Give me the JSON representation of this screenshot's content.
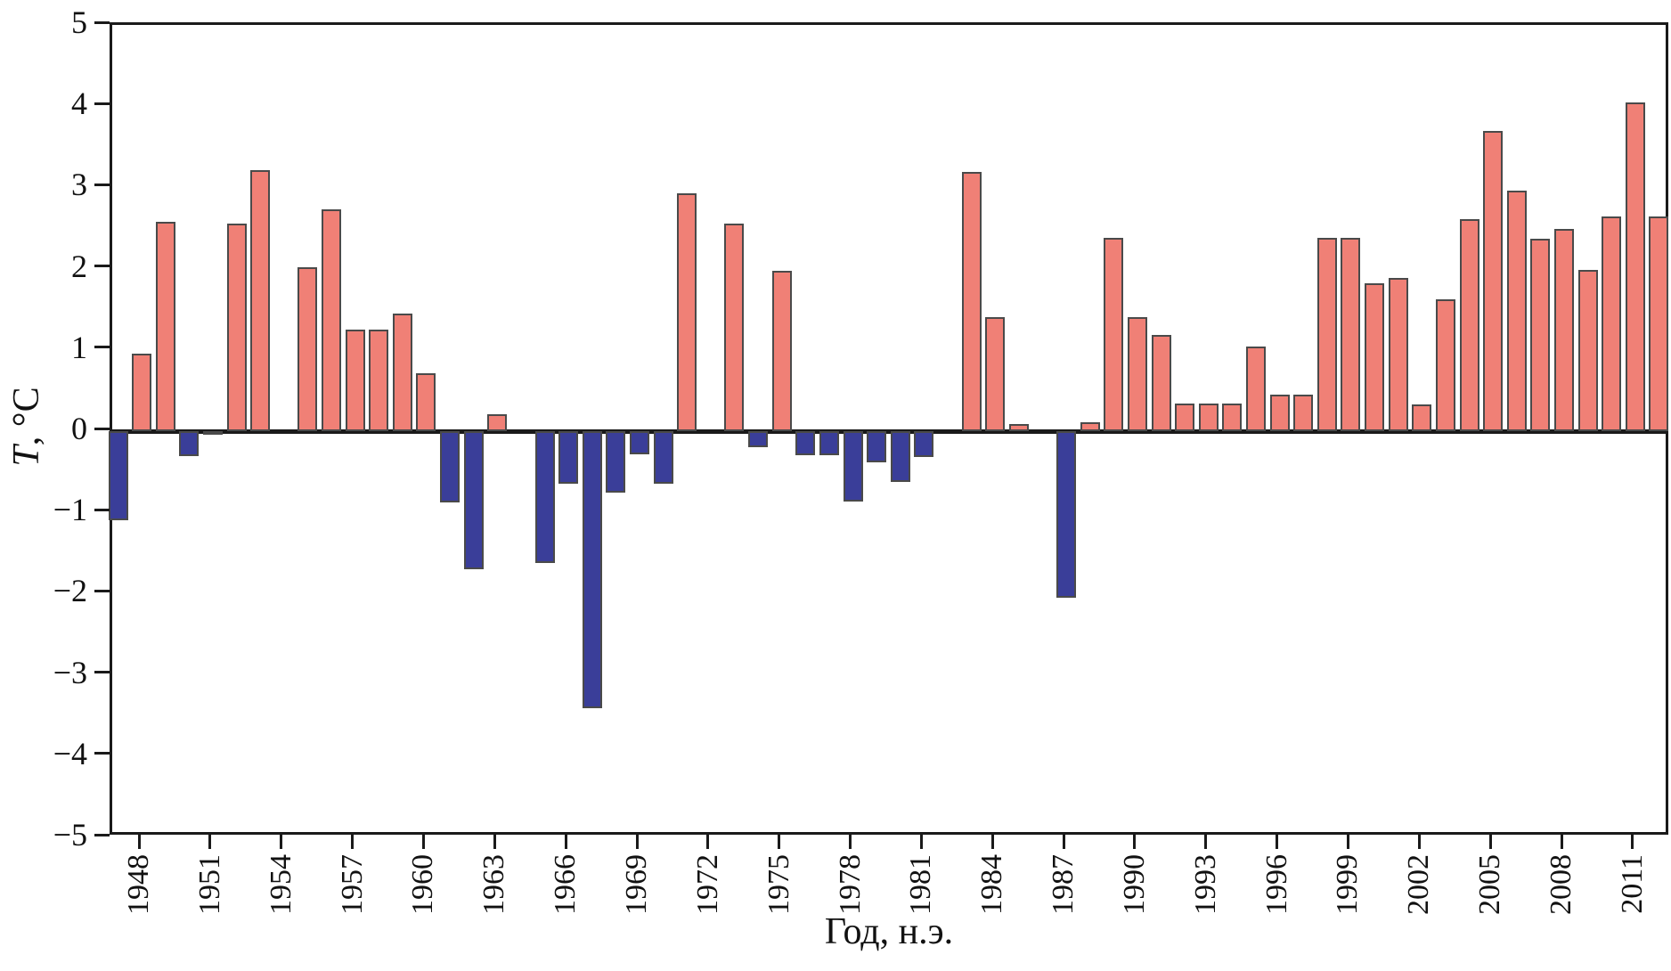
{
  "figure": {
    "x_axis_title": "Год, н.э.",
    "y_axis_title_italic_part": "T",
    "y_axis_title_rest": ", °C"
  },
  "chart_data": {
    "type": "bar",
    "title": "",
    "xlabel": "Год, н.э.",
    "ylabel": "T, °C",
    "x": [
      1947,
      1948,
      1949,
      1950,
      1951,
      1952,
      1953,
      1954,
      1955,
      1956,
      1957,
      1958,
      1959,
      1960,
      1961,
      1962,
      1963,
      1964,
      1965,
      1966,
      1967,
      1968,
      1969,
      1970,
      1971,
      1972,
      1973,
      1974,
      1975,
      1976,
      1977,
      1978,
      1979,
      1980,
      1981,
      1982,
      1983,
      1984,
      1985,
      1986,
      1987,
      1988,
      1989,
      1990,
      1991,
      1992,
      1993,
      1994,
      1995,
      1996,
      1997,
      1998,
      1999,
      2000,
      2001,
      2002,
      2003,
      2004,
      2005,
      2006,
      2007,
      2008,
      2009,
      2010,
      2011,
      2012
    ],
    "values": [
      -1.1,
      0.95,
      2.58,
      -0.31,
      -0.04,
      2.56,
      3.21,
      null,
      2.02,
      2.73,
      1.25,
      1.25,
      1.45,
      0.71,
      -0.88,
      -1.7,
      0.21,
      null,
      -1.62,
      -0.65,
      -3.41,
      -0.76,
      -0.29,
      -0.65,
      2.93,
      null,
      2.55,
      -0.2,
      1.97,
      -0.3,
      -0.3,
      -0.87,
      -0.38,
      -0.63,
      -0.32,
      null,
      3.19,
      1.4,
      0.09,
      null,
      -2.05,
      0.11,
      2.38,
      1.4,
      1.18,
      0.34,
      0.34,
      0.34,
      1.04,
      0.45,
      0.45,
      2.38,
      2.38,
      1.82,
      1.89,
      0.33,
      1.62,
      2.61,
      3.7,
      2.96,
      2.37,
      2.49,
      1.99,
      2.64,
      4.05,
      2.64
    ],
    "ylim": [
      -5,
      5
    ],
    "y_tick_values": [
      5,
      4,
      3,
      2,
      1,
      0,
      -1,
      -2,
      -3,
      -4,
      -5
    ],
    "x_tick_years": [
      1948,
      1951,
      1954,
      1957,
      1960,
      1963,
      1966,
      1969,
      1972,
      1975,
      1978,
      1981,
      1984,
      1987,
      1990,
      1993,
      1996,
      1999,
      2002,
      2005,
      2008,
      2011
    ],
    "grid": false,
    "legend": "none",
    "positive_color": "#F08076",
    "negative_color": "#3A3E99",
    "bar_edge_color": "#4a4a4a",
    "axis_color": "#1a1a1a"
  }
}
